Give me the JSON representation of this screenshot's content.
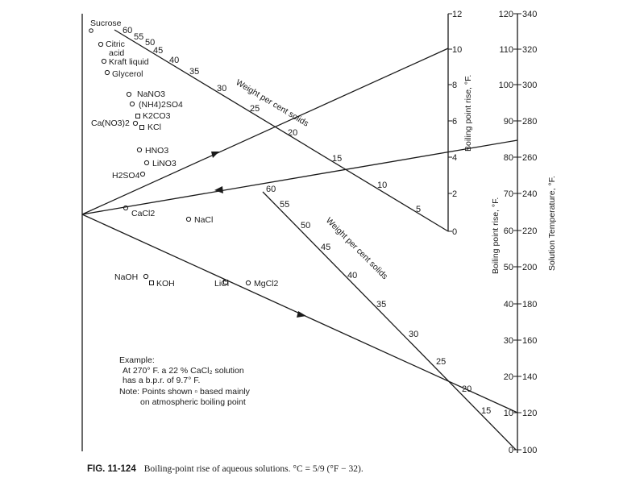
{
  "diagram": {
    "compounds": [
      {
        "label": "Sucrose",
        "marker": "none"
      },
      {
        "label": "Citric",
        "marker": "circle"
      },
      {
        "label": "acid",
        "marker": "none"
      },
      {
        "label": "Kraft liquid",
        "marker": "circle"
      },
      {
        "label": "Glycerol",
        "marker": "circle"
      },
      {
        "label": "NaNO3",
        "marker": "circle"
      },
      {
        "label": "(NH4)2SO4",
        "marker": "circle"
      },
      {
        "label": "K2CO3",
        "marker": "square"
      },
      {
        "label": "Ca(NO3)2",
        "marker": "circle"
      },
      {
        "label": "KCl",
        "marker": "square"
      },
      {
        "label": "HNO3",
        "marker": "circle"
      },
      {
        "label": "LiNO3",
        "marker": "circle"
      },
      {
        "label": "H2SO4",
        "marker": "circle"
      },
      {
        "label": "CaCl2",
        "marker": "circle"
      },
      {
        "label": "NaCl",
        "marker": "circle"
      },
      {
        "label": "NaOH",
        "marker": "circle"
      },
      {
        "label": "KOH",
        "marker": "square"
      },
      {
        "label": "LiCl",
        "marker": "square"
      },
      {
        "label": "MgCl2",
        "marker": "circle"
      }
    ],
    "upper_weight_scale": {
      "title": "Weight per cent solids",
      "ticks": [
        "60",
        "55",
        "50",
        "45",
        "40",
        "35",
        "30",
        "25",
        "20",
        "15",
        "10",
        "5"
      ]
    },
    "lower_weight_scale": {
      "title": "Weight per cent solids",
      "ticks": [
        "60",
        "55",
        "50",
        "45",
        "40",
        "35",
        "30",
        "25",
        "20",
        "15"
      ]
    },
    "small_bpr_scale": {
      "title": "Boiling point rise, °F.",
      "ticks": [
        "12",
        "10",
        "8",
        "6",
        "4",
        "2",
        "0"
      ]
    },
    "bpr_scale": {
      "title": "Boiling point rise, °F.",
      "ticks": [
        "120",
        "110",
        "100",
        "90",
        "80",
        "70",
        "60",
        "50",
        "40",
        "30",
        "20",
        "10",
        "0"
      ]
    },
    "temperature_scale": {
      "title": "Solution Temperature, °F.",
      "ticks": [
        "340",
        "320",
        "300",
        "280",
        "260",
        "240",
        "220",
        "200",
        "180",
        "160",
        "140",
        "120",
        "100"
      ]
    },
    "example": {
      "heading": "Example:",
      "line1": "At 270° F. a 22 % CaCl₂ solution",
      "line2": "has a b.p.r. of 9.7° F.",
      "note1": "Note: Points shown ▫ based mainly",
      "note2": "on atmospheric boiling point"
    }
  },
  "caption": {
    "label": "FIG. 11-124",
    "text": "Boiling-point rise of aqueous solutions. °C = 5/9 (°F − 32)."
  }
}
